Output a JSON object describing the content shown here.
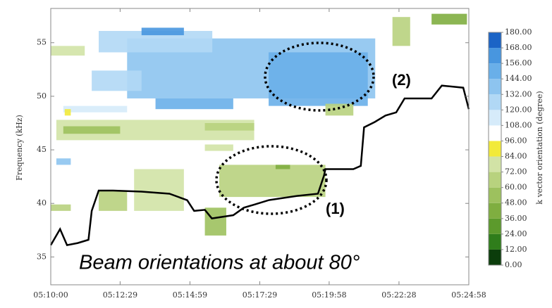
{
  "chart_data": {
    "type": "heatmap-line",
    "y_label": "Frequency (kHz)",
    "colorbar_label": "k vector orientation (degree)",
    "annotations": [
      "(1)",
      "(2)",
      "Beam orientations at about 80°"
    ],
    "xlim": [
      0,
      898
    ],
    "xticks": [
      {
        "value": 0,
        "label": "05:10:00"
      },
      {
        "value": 149,
        "label": "05:12:29"
      },
      {
        "value": 299,
        "label": "05:14:59"
      },
      {
        "value": 449,
        "label": "05:17:29"
      },
      {
        "value": 598,
        "label": "05:19:58"
      },
      {
        "value": 748,
        "label": "05:22:28"
      },
      {
        "value": 898,
        "label": "05:24:58"
      }
    ],
    "ylim": [
      32.4,
      58.2
    ],
    "yticks": [
      35,
      40,
      45,
      50,
      55
    ],
    "clim": [
      0,
      180
    ],
    "colorbar_ticks": [
      {
        "value": 180,
        "label": "180.00"
      },
      {
        "value": 168,
        "label": "168.00"
      },
      {
        "value": 156,
        "label": "156.00"
      },
      {
        "value": 144,
        "label": "144.00"
      },
      {
        "value": 132,
        "label": "132.00"
      },
      {
        "value": 120,
        "label": "120.00"
      },
      {
        "value": 108,
        "label": "108.00"
      },
      {
        "value": 96,
        "label": "96.00"
      },
      {
        "value": 84,
        "label": "84.00"
      },
      {
        "value": 72,
        "label": "72.00"
      },
      {
        "value": 60,
        "label": "60.00"
      },
      {
        "value": 48,
        "label": "48.00"
      },
      {
        "value": 36,
        "label": "36.00"
      },
      {
        "value": 24,
        "label": "24.00"
      },
      {
        "value": 12,
        "label": "12.00"
      },
      {
        "value": 0,
        "label": "0.00"
      }
    ],
    "colorscale": [
      "#0b3d0b",
      "#2f7d1b",
      "#5c9a2c",
      "#7fae40",
      "#9dc15e",
      "#b8d27e",
      "#d2e3a6",
      "#f2ea3a",
      "#ffffff",
      "#d6ebfa",
      "#b1d8f5",
      "#8dc4ef",
      "#69afe9",
      "#4896df",
      "#1b64c6"
    ],
    "cells": {
      "t0": [
        164,
        103,
        468,
        88,
        195,
        225,
        27,
        12,
        27,
        331,
        12,
        179,
        103,
        331,
        362,
        483,
        590,
        734,
        818,
        0,
        0,
        30,
        331
      ],
      "t1": [
        697,
        347,
        681,
        195,
        286,
        392,
        164,
        437,
        149,
        437,
        43,
        286,
        164,
        377,
        590,
        514,
        650,
        772,
        894,
        43,
        73,
        43,
        392
      ],
      "f0": [
        49.8,
        54.1,
        49.1,
        50.5,
        55.7,
        48.8,
        48.5,
        45.9,
        46.5,
        46.8,
        43.6,
        39.3,
        39.3,
        37.0,
        40.6,
        43.2,
        48.2,
        54.7,
        56.7,
        39.3,
        53.8,
        48.2,
        44.9
      ],
      "f1": [
        55.4,
        56.1,
        54.1,
        52.4,
        56.4,
        49.8,
        49.1,
        47.8,
        47.2,
        47.5,
        44.2,
        43.2,
        41.2,
        39.6,
        43.6,
        43.6,
        49.3,
        57.4,
        57.7,
        39.9,
        54.7,
        48.8,
        45.5
      ],
      "values": [
        140,
        130,
        145,
        120,
        165,
        150,
        115,
        75,
        50,
        65,
        140,
        72,
        60,
        48,
        70,
        40,
        68,
        70,
        45,
        60,
        75,
        92,
        78
      ]
    },
    "line": {
      "color": "#000000",
      "x": [
        0,
        20,
        35,
        58,
        81,
        88,
        103,
        134,
        195,
        255,
        293,
        308,
        331,
        346,
        392,
        415,
        438,
        468,
        529,
        574,
        587,
        590,
        650,
        666,
        673,
        696,
        719,
        742,
        760,
        818,
        840,
        886,
        898
      ],
      "values": [
        36.1,
        37.6,
        36.1,
        36.3,
        36.6,
        39.3,
        41.2,
        41.2,
        41.1,
        40.9,
        40.3,
        39.3,
        39.4,
        38.6,
        38.9,
        39.6,
        39.9,
        40.3,
        40.7,
        40.9,
        42.6,
        43.2,
        43.2,
        43.5,
        47.1,
        47.6,
        48.2,
        48.5,
        49.8,
        49.8,
        51.0,
        50.8,
        48.8
      ]
    }
  }
}
